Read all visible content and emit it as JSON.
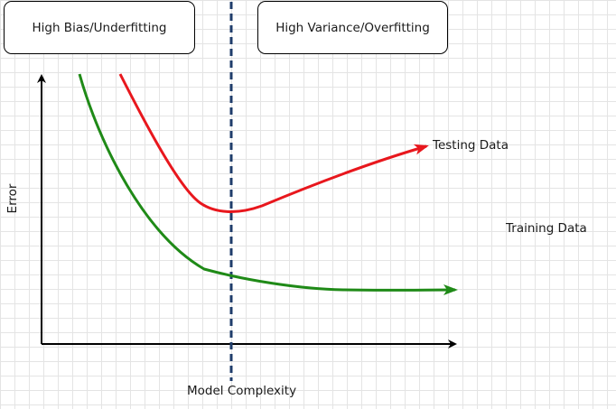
{
  "regions": {
    "left_label": "High Bias/Underfitting",
    "right_label": "High Variance/Overfitting"
  },
  "axes": {
    "x_label": "Model Complexity",
    "y_label": "Error"
  },
  "curves": {
    "testing_label": "Testing Data",
    "training_label": "Training Data",
    "testing_color": "#e8171d",
    "training_color": "#1f8a17"
  },
  "divider": {
    "color": "#1f3d6b",
    "style": "dashed"
  }
}
